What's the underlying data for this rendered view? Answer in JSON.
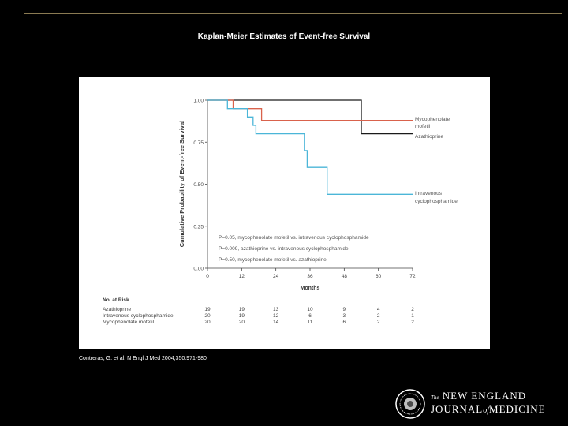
{
  "slide": {
    "title": "Kaplan-Meier Estimates of Event-free Survival",
    "citation": "Contreras, G. et al. N Engl J Med 2004;350:971-980"
  },
  "logo": {
    "line1_prefix": "The",
    "line1": "NEW ENGLAND",
    "line2_a": "JOURNAL",
    "line2_of": "of",
    "line2_b": "MEDICINE"
  },
  "colors": {
    "azathioprine": "#1a1a1a",
    "mycophenolate": "#d9624c",
    "cyclophosphamide": "#4bb6d8",
    "background": "#000000",
    "decor": "#8a7a52"
  },
  "chart_data": {
    "type": "line",
    "step": true,
    "ylabel": "Cumulative Probability of Event-free Survival",
    "xlabel": "Months",
    "xlim": [
      0,
      72
    ],
    "ylim": [
      0,
      1
    ],
    "xticks": [
      "0",
      "12",
      "24",
      "36",
      "48",
      "60",
      "72"
    ],
    "yticks": [
      "0.00",
      "0.25",
      "0.50",
      "0.75",
      "1.00"
    ],
    "series": [
      {
        "key": "aza",
        "name": "Azathioprine",
        "points": [
          [
            0,
            1.0
          ],
          [
            54,
            1.0
          ],
          [
            54,
            0.8
          ],
          [
            72,
            0.8
          ]
        ]
      },
      {
        "key": "myco",
        "name": "Mycophenolate mofetil",
        "label_lines": [
          "Mycophenolate",
          "mofetil"
        ],
        "points": [
          [
            0,
            1.0
          ],
          [
            9,
            1.0
          ],
          [
            9,
            0.95
          ],
          [
            19,
            0.95
          ],
          [
            19,
            0.88
          ],
          [
            72,
            0.88
          ]
        ]
      },
      {
        "key": "cyc",
        "name": "Intravenous cyclophosphamide",
        "label_lines": [
          "Intravenous",
          "cyclophosphamide"
        ],
        "points": [
          [
            0,
            1.0
          ],
          [
            7,
            1.0
          ],
          [
            7,
            0.95
          ],
          [
            14,
            0.95
          ],
          [
            14,
            0.9
          ],
          [
            16,
            0.9
          ],
          [
            16,
            0.85
          ],
          [
            17,
            0.85
          ],
          [
            17,
            0.8
          ],
          [
            34,
            0.8
          ],
          [
            34,
            0.7
          ],
          [
            35,
            0.7
          ],
          [
            35,
            0.6
          ],
          [
            42,
            0.6
          ],
          [
            42,
            0.44
          ],
          [
            72,
            0.44
          ]
        ]
      }
    ],
    "annotations": [
      "P=0.05, mycophenolate mofetil vs. intravenous cyclophosphamide",
      "P=0.009, azathioprine vs. intravenous cyclophosphamide",
      "P=0.50, mycophenolate mofetil vs. azathioprine"
    ],
    "risk_table": {
      "title": "No. at Risk",
      "rows": [
        {
          "label": "Azathioprine",
          "values": [
            "19",
            "19",
            "13",
            "10",
            "9",
            "4",
            "2"
          ]
        },
        {
          "label": "Intravenous cyclophosphamide",
          "values": [
            "20",
            "19",
            "12",
            "6",
            "3",
            "2",
            "1"
          ]
        },
        {
          "label": "Mycophenolate mofetil",
          "values": [
            "20",
            "20",
            "14",
            "11",
            "6",
            "2",
            "2"
          ]
        }
      ]
    }
  }
}
